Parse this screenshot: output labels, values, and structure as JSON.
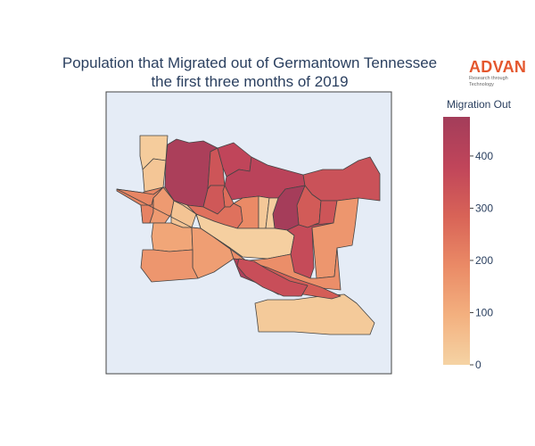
{
  "title_line1": "Population that Migrated out of Germantown Tennessee",
  "title_line2": "the first three months of 2019",
  "logo": {
    "name": "ADVAN",
    "tagline": "Research through Technology"
  },
  "colorbar": {
    "title": "Migration Out",
    "min": 0,
    "max": 475,
    "ticks": [
      0,
      100,
      200,
      300,
      400
    ],
    "colorscale": [
      "#f5d3a4",
      "#f3b07f",
      "#ea8a66",
      "#d86357",
      "#c0455a",
      "#a33d5a"
    ]
  },
  "colors": {
    "map_background": "#e5ecf6",
    "region_stroke": "#444444",
    "title_text": "#2a3f5f",
    "logo_accent": "#e4572e"
  },
  "chart_data": {
    "type": "choropleth",
    "value_label": "Migration Out",
    "regions": [
      {
        "id": "r1",
        "value": 20
      },
      {
        "id": "r2",
        "value": 35
      },
      {
        "id": "r3",
        "value": 450
      },
      {
        "id": "r4",
        "value": 330
      },
      {
        "id": "r5",
        "value": 380
      },
      {
        "id": "r6",
        "value": 400
      },
      {
        "id": "r7",
        "value": 340
      },
      {
        "id": "r8",
        "value": 310
      },
      {
        "id": "r9",
        "value": 260
      },
      {
        "id": "r10",
        "value": 320
      },
      {
        "id": "r11",
        "value": 470
      },
      {
        "id": "r12",
        "value": 200
      },
      {
        "id": "r13",
        "value": 210
      },
      {
        "id": "r14",
        "value": 150
      },
      {
        "id": "r15",
        "value": 40
      },
      {
        "id": "r16",
        "value": 250
      },
      {
        "id": "r17",
        "value": 190
      },
      {
        "id": "r18",
        "value": 30
      },
      {
        "id": "r19",
        "value": 15
      },
      {
        "id": "r20",
        "value": 10
      },
      {
        "id": "r21",
        "value": 360
      },
      {
        "id": "r22",
        "value": 330
      },
      {
        "id": "r23",
        "value": 160
      },
      {
        "id": "r24",
        "value": 120
      },
      {
        "id": "r25",
        "value": 140
      },
      {
        "id": "r26",
        "value": 160
      },
      {
        "id": "r27",
        "value": 180
      },
      {
        "id": "r28",
        "value": 25
      },
      {
        "id": "r29",
        "value": 300
      },
      {
        "id": "r30",
        "value": 15
      },
      {
        "id": "r31",
        "value": 440
      },
      {
        "id": "r32",
        "value": 350
      }
    ]
  }
}
